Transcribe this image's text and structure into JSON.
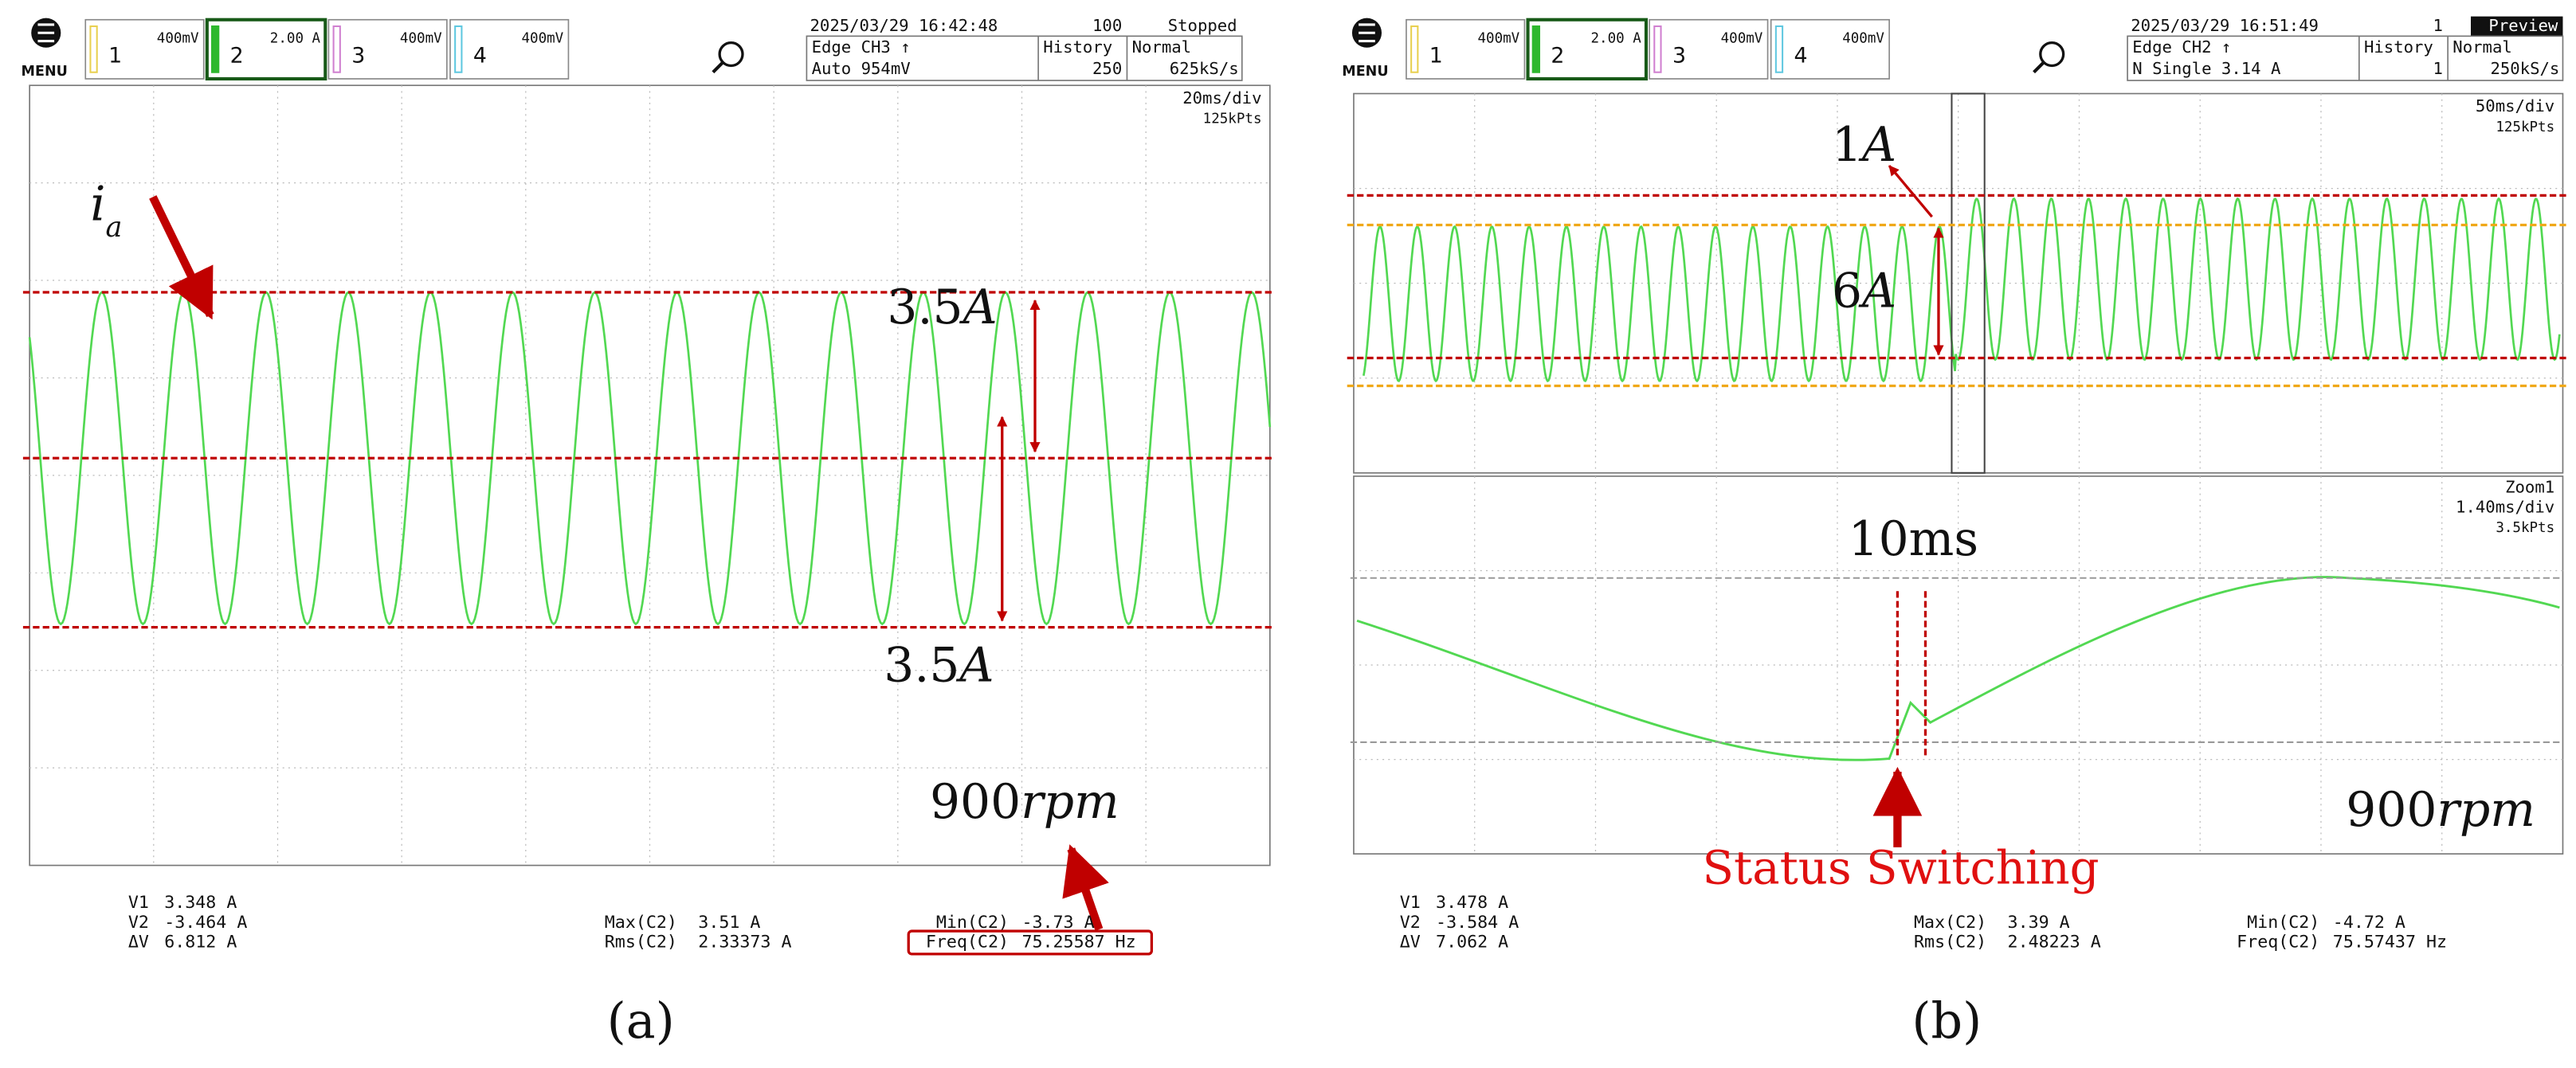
{
  "panels": [
    {
      "menu": "MENU",
      "channels": [
        {
          "number": "1",
          "scale": "400mV"
        },
        {
          "number": "2",
          "scale": "2.00 A"
        },
        {
          "number": "3",
          "scale": "400mV"
        },
        {
          "number": "4",
          "scale": "400mV"
        }
      ],
      "status": {
        "datetime": "2025/03/29 16:42:48",
        "count": "100",
        "state": "Stopped",
        "trigger": "Edge CH3 ↑",
        "trigger_mode": "Auto 954mV",
        "history_label": "History",
        "history": "250",
        "mode": "Normal",
        "sample_rate": "625kS/s"
      },
      "screen": {
        "timebase": "20ms/div",
        "points": "125kPts"
      },
      "annotations": {
        "current": {
          "symbol": "i",
          "subscript": "a"
        },
        "upper": {
          "number": "3.5",
          "unit": "A"
        },
        "lower": {
          "number": "3.5",
          "unit": "A"
        },
        "speed": {
          "number": "900",
          "unit": "rpm"
        }
      },
      "measurements": [
        {
          "label": "V1",
          "value": "3.348 A"
        },
        {
          "label": "V2",
          "value": "-3.464 A"
        },
        {
          "label": "ΔV",
          "value": "6.812 A"
        },
        {
          "label": "Max(C2)",
          "value": "3.51 A"
        },
        {
          "label": "Rms(C2)",
          "value": "2.33373 A"
        },
        {
          "label": "Min(C2)",
          "value": "-3.73 A"
        },
        {
          "label": "Freq(C2)",
          "value": "75.25587 Hz"
        }
      ],
      "caption": "(a)"
    },
    {
      "menu": "MENU",
      "channels": [
        {
          "number": "1",
          "scale": "400mV"
        },
        {
          "number": "2",
          "scale": "2.00 A"
        },
        {
          "number": "3",
          "scale": "400mV"
        },
        {
          "number": "4",
          "scale": "400mV"
        }
      ],
      "status": {
        "datetime": "2025/03/29 16:51:49",
        "count": "1",
        "state": "Preview",
        "trigger": "Edge CH2 ↑",
        "trigger_mode": "N Single 3.14 A",
        "history_label": "History",
        "history": "1",
        "mode": "Normal",
        "sample_rate": "250kS/s"
      },
      "screen": {
        "timebase": "50ms/div",
        "points": "125kPts"
      },
      "zoom": {
        "label": "Zoom1",
        "timebase": "1.40ms/div",
        "points": "3.5kPts"
      },
      "annotations": {
        "upper": {
          "number": "1",
          "unit": "A"
        },
        "middle": {
          "number": "6",
          "unit": "A"
        },
        "interval": "10ms",
        "speed": {
          "number": "900",
          "unit": "rpm"
        },
        "event": "Status Switching"
      },
      "measurements": [
        {
          "label": "V1",
          "value": "3.478 A"
        },
        {
          "label": "V2",
          "value": "-3.584 A"
        },
        {
          "label": "ΔV",
          "value": "7.062 A"
        },
        {
          "label": "Max(C2)",
          "value": "3.39 A"
        },
        {
          "label": "Rms(C2)",
          "value": "2.48223 A"
        },
        {
          "label": "Min(C2)",
          "value": "-4.72 A"
        },
        {
          "label": "Freq(C2)",
          "value": "75.57437 Hz"
        }
      ],
      "caption": "(b)"
    }
  ]
}
